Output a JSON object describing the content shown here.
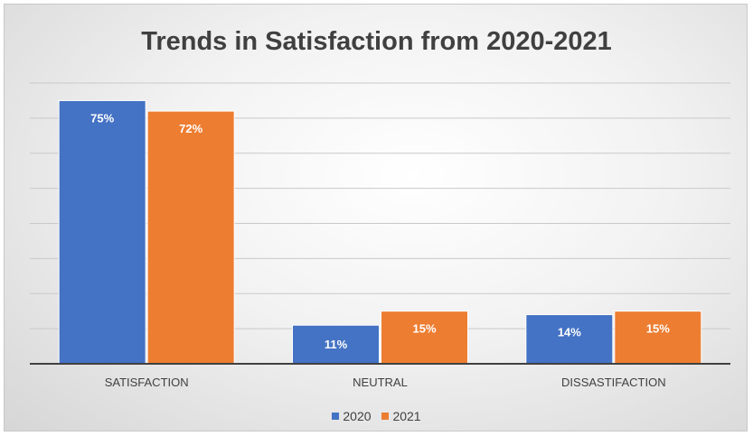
{
  "chart_data": {
    "type": "bar",
    "title": "Trends in Satisfaction from 2020-2021",
    "categories": [
      "SATISFACTION",
      "NEUTRAL",
      "DISSASTIFACTION"
    ],
    "series": [
      {
        "name": "2020",
        "values": [
          75,
          11,
          14
        ],
        "labels": [
          "75%",
          "11%",
          "14%"
        ],
        "color": "#4472c4"
      },
      {
        "name": "2021",
        "values": [
          72,
          15,
          15
        ],
        "labels": [
          "72%",
          "15%",
          "15%"
        ],
        "color": "#ed7d31"
      }
    ],
    "ylim": [
      0,
      80
    ],
    "gridlines": true,
    "y_axis_labels": false,
    "legend": "bottom"
  }
}
